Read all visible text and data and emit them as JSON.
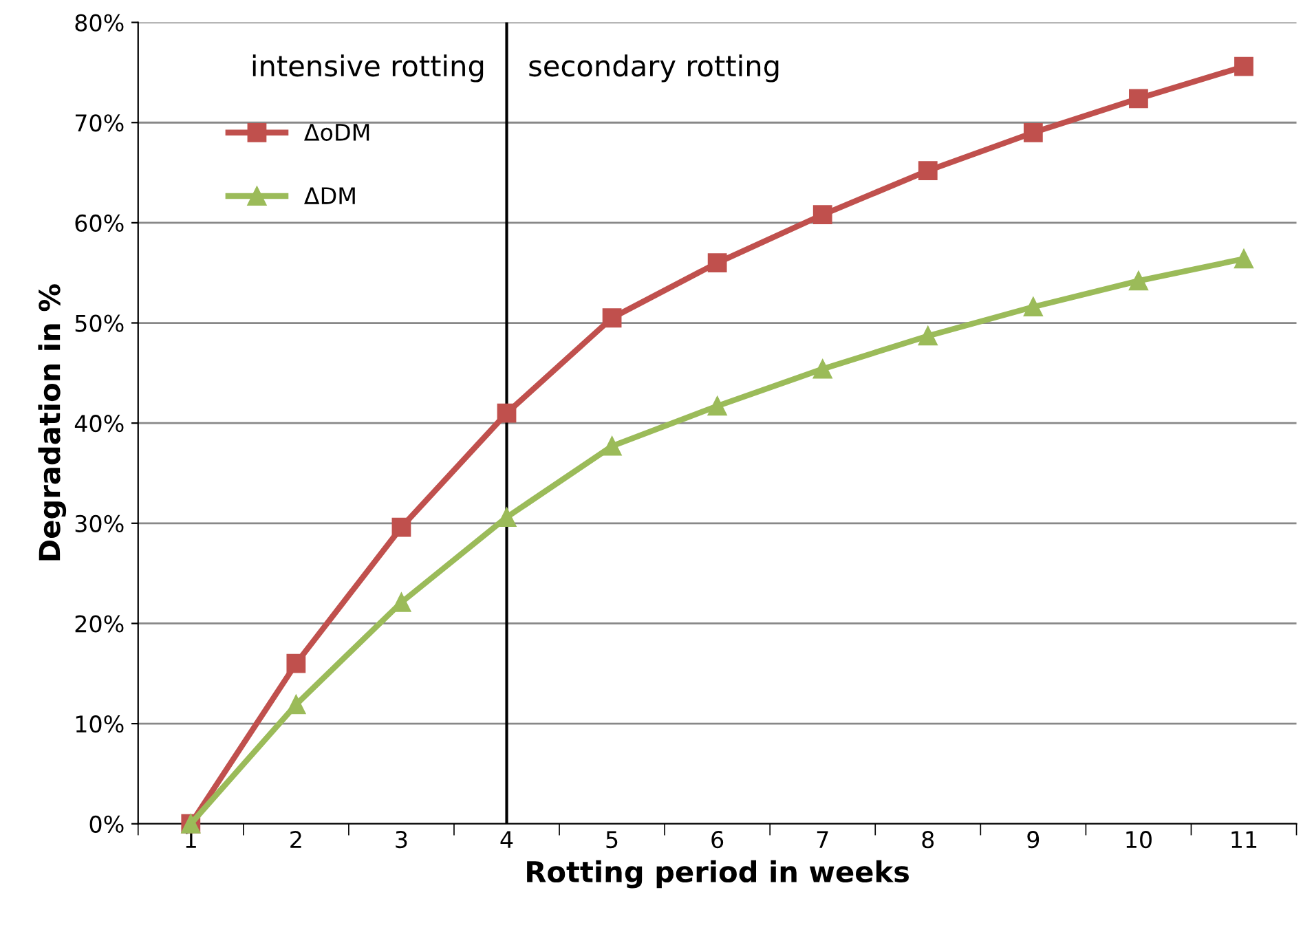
{
  "chart_data": {
    "type": "line",
    "xlabel": "Rotting period in weeks",
    "ylabel": "Degradation in %",
    "categories": [
      "1",
      "2",
      "3",
      "4",
      "5",
      "6",
      "7",
      "8",
      "9",
      "10",
      "11"
    ],
    "series": [
      {
        "name": "ΔoDM",
        "color": "#c0504d",
        "marker": "square",
        "values": [
          0,
          16,
          29.6,
          41,
          50.5,
          56,
          60.8,
          65.2,
          69,
          72.4,
          75.6
        ]
      },
      {
        "name": "ΔDM",
        "color": "#9bbb59",
        "marker": "triangle",
        "values": [
          0,
          11.9,
          22.1,
          30.6,
          37.7,
          41.7,
          45.4,
          48.7,
          51.6,
          54.2,
          56.4
        ]
      }
    ],
    "ylim": [
      0,
      80
    ],
    "yticks": [
      {
        "value": 0,
        "label": "0%"
      },
      {
        "value": 10,
        "label": "10%"
      },
      {
        "value": 20,
        "label": "20%"
      },
      {
        "value": 30,
        "label": "30%"
      },
      {
        "value": 40,
        "label": "40%"
      },
      {
        "value": 50,
        "label": "50%"
      },
      {
        "value": 60,
        "label": "60%"
      },
      {
        "value": 70,
        "label": "70%"
      },
      {
        "value": 80,
        "label": "80%"
      }
    ],
    "ref_lines": [
      {
        "axis": "x",
        "value": "4",
        "color": "#000000"
      }
    ],
    "annotations": [
      "intensive rotting",
      "secondary rotting"
    ],
    "grid": "y",
    "legend": "top left",
    "line_style": "solid"
  }
}
